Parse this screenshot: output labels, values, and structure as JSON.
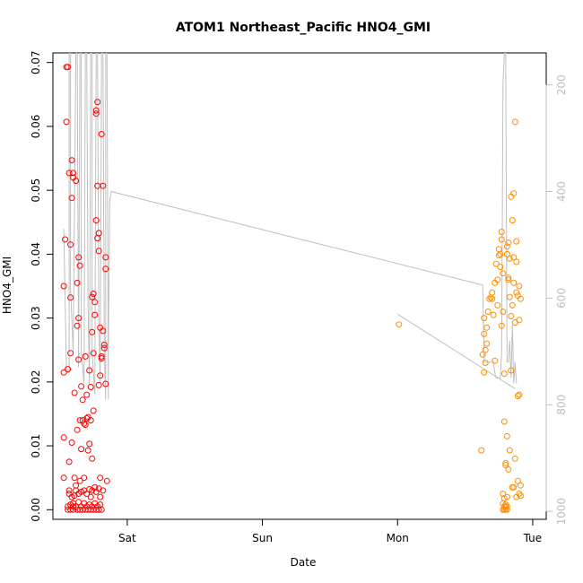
{
  "chart_data": {
    "type": "scatter",
    "title": "ATOM1 Northeast_Pacific HNO4_GMI",
    "xlabel": "Date",
    "ylabel": "HNO4_GMI",
    "x_unit": "days",
    "x_ticks": [
      {
        "label": "Sat",
        "value": 1.0
      },
      {
        "label": "Sun",
        "value": 2.0
      },
      {
        "label": "Mon",
        "value": 3.0
      },
      {
        "label": "Tue",
        "value": 4.0
      }
    ],
    "xlim": [
      0.45,
      4.1
    ],
    "ylim": [
      -0.0015,
      0.0715
    ],
    "y_ticks": [
      0.0,
      0.01,
      0.02,
      0.03,
      0.04,
      0.05,
      0.06,
      0.07
    ],
    "y_tick_labels": [
      "0.00",
      "0.01",
      "0.02",
      "0.03",
      "0.04",
      "0.05",
      "0.06",
      "0.07"
    ],
    "right_axis": {
      "lim": [
        1015,
        140
      ],
      "ticks": [
        200,
        400,
        600,
        800,
        1000
      ],
      "tick_labels": [
        "200",
        "400",
        "600",
        "800",
        "1000"
      ],
      "color": "#bdbdbd"
    },
    "grid": false,
    "legend": "none",
    "colors": {
      "series1": "#ff0000",
      "series2": "#ff8c00",
      "line": "#bfbfbf"
    },
    "series": [
      {
        "marker": "circle-open",
        "color": "#ff0000",
        "points": [
          [
            0.53,
            0.0215
          ],
          [
            0.53,
            0.035
          ],
          [
            0.53,
            0.005
          ],
          [
            0.53,
            0.0113
          ],
          [
            0.54,
            0.0423
          ],
          [
            0.55,
            0.0693
          ],
          [
            0.55,
            0.0607
          ],
          [
            0.56,
            0.022
          ],
          [
            0.56,
            0.0693
          ],
          [
            0.57,
            0.0527
          ],
          [
            0.57,
            0.003
          ],
          [
            0.57,
            0.0075
          ],
          [
            0.58,
            0.0415
          ],
          [
            0.58,
            0.0332
          ],
          [
            0.58,
            0.0245
          ],
          [
            0.59,
            0.0547
          ],
          [
            0.59,
            0.0488
          ],
          [
            0.59,
            0.0105
          ],
          [
            0.6,
            0.052
          ],
          [
            0.6,
            0.0527
          ],
          [
            0.6,
            0.0005
          ],
          [
            0.61,
            0.0183
          ],
          [
            0.61,
            0.005
          ],
          [
            0.62,
            0.0515
          ],
          [
            0.62,
            0.0038
          ],
          [
            0.63,
            0.0355
          ],
          [
            0.63,
            0.0288
          ],
          [
            0.63,
            0.0125
          ],
          [
            0.64,
            0.0395
          ],
          [
            0.64,
            0.03
          ],
          [
            0.64,
            0.0235
          ],
          [
            0.65,
            0.0382
          ],
          [
            0.65,
            0.014
          ],
          [
            0.65,
            0.0045
          ],
          [
            0.66,
            0.0193
          ],
          [
            0.66,
            0.0095
          ],
          [
            0.67,
            0.014
          ],
          [
            0.67,
            0.0172
          ],
          [
            0.68,
            0.0135
          ],
          [
            0.68,
            0.005
          ],
          [
            0.69,
            0.024
          ],
          [
            0.69,
            0.0133
          ],
          [
            0.7,
            0.0143
          ],
          [
            0.7,
            0.018
          ],
          [
            0.71,
            0.0145
          ],
          [
            0.71,
            0.0093
          ],
          [
            0.72,
            0.0218
          ],
          [
            0.72,
            0.0103
          ],
          [
            0.73,
            0.0192
          ],
          [
            0.73,
            0.014
          ],
          [
            0.74,
            0.0333
          ],
          [
            0.74,
            0.0278
          ],
          [
            0.74,
            0.008
          ],
          [
            0.75,
            0.0338
          ],
          [
            0.75,
            0.0245
          ],
          [
            0.75,
            0.0155
          ],
          [
            0.76,
            0.0325
          ],
          [
            0.76,
            0.0305
          ],
          [
            0.77,
            0.0453
          ],
          [
            0.77,
            0.0625
          ],
          [
            0.77,
            0.062
          ],
          [
            0.78,
            0.0638
          ],
          [
            0.78,
            0.0425
          ],
          [
            0.78,
            0.0507
          ],
          [
            0.79,
            0.0433
          ],
          [
            0.79,
            0.0405
          ],
          [
            0.79,
            0.0195
          ],
          [
            0.8,
            0.0285
          ],
          [
            0.8,
            0.021
          ],
          [
            0.8,
            0.005
          ],
          [
            0.81,
            0.024
          ],
          [
            0.81,
            0.0237
          ],
          [
            0.81,
            0.0588
          ],
          [
            0.82,
            0.0507
          ],
          [
            0.82,
            0.028
          ],
          [
            0.83,
            0.0253
          ],
          [
            0.83,
            0.0258
          ],
          [
            0.84,
            0.0377
          ],
          [
            0.84,
            0.0395
          ],
          [
            0.84,
            0.0197
          ],
          [
            0.85,
            0.0045
          ],
          [
            0.56,
            0.0005
          ],
          [
            0.56,
            0.0
          ],
          [
            0.58,
            0.0008
          ],
          [
            0.58,
            0.0
          ],
          [
            0.6,
            0.001
          ],
          [
            0.6,
            0.0
          ],
          [
            0.62,
            0.0005
          ],
          [
            0.63,
            0.0
          ],
          [
            0.64,
            0.0012
          ],
          [
            0.65,
            0.0
          ],
          [
            0.66,
            0.0005
          ],
          [
            0.67,
            0.0
          ],
          [
            0.68,
            0.001
          ],
          [
            0.69,
            0.0
          ],
          [
            0.7,
            0.0005
          ],
          [
            0.71,
            0.0
          ],
          [
            0.72,
            0.0008
          ],
          [
            0.73,
            0.0
          ],
          [
            0.74,
            0.0005
          ],
          [
            0.75,
            0.0
          ],
          [
            0.76,
            0.001
          ],
          [
            0.77,
            0.0
          ],
          [
            0.78,
            0.0005
          ],
          [
            0.79,
            0.0
          ],
          [
            0.8,
            0.0008
          ],
          [
            0.81,
            0.0
          ],
          [
            0.57,
            0.0025
          ],
          [
            0.59,
            0.002
          ],
          [
            0.61,
            0.0022
          ],
          [
            0.62,
            0.003
          ],
          [
            0.64,
            0.0025
          ],
          [
            0.66,
            0.0028
          ],
          [
            0.68,
            0.003
          ],
          [
            0.7,
            0.0025
          ],
          [
            0.72,
            0.0032
          ],
          [
            0.73,
            0.002
          ],
          [
            0.74,
            0.003
          ],
          [
            0.76,
            0.0035
          ],
          [
            0.77,
            0.0028
          ],
          [
            0.79,
            0.0033
          ],
          [
            0.8,
            0.002
          ],
          [
            0.82,
            0.003
          ]
        ]
      },
      {
        "marker": "circle-open",
        "color": "#ff8c00",
        "points": [
          [
            3.01,
            0.029
          ],
          [
            3.62,
            0.0093
          ],
          [
            3.63,
            0.0243
          ],
          [
            3.64,
            0.03
          ],
          [
            3.64,
            0.0275
          ],
          [
            3.64,
            0.0215
          ],
          [
            3.65,
            0.025
          ],
          [
            3.65,
            0.023
          ],
          [
            3.66,
            0.026
          ],
          [
            3.66,
            0.0285
          ],
          [
            3.67,
            0.031
          ],
          [
            3.68,
            0.033
          ],
          [
            3.69,
            0.0332
          ],
          [
            3.7,
            0.034
          ],
          [
            3.7,
            0.033
          ],
          [
            3.71,
            0.0305
          ],
          [
            3.72,
            0.0233
          ],
          [
            3.72,
            0.0355
          ],
          [
            3.73,
            0.0385
          ],
          [
            3.74,
            0.036
          ],
          [
            3.74,
            0.032
          ],
          [
            3.75,
            0.0398
          ],
          [
            3.75,
            0.0408
          ],
          [
            3.76,
            0.04
          ],
          [
            3.76,
            0.038
          ],
          [
            3.77,
            0.0435
          ],
          [
            3.77,
            0.0423
          ],
          [
            3.77,
            0.0288
          ],
          [
            3.78,
            0.031
          ],
          [
            3.78,
            0.037
          ],
          [
            3.79,
            0.0213
          ],
          [
            3.79,
            0.0138
          ],
          [
            3.8,
            0.0073
          ],
          [
            3.8,
            0.007
          ],
          [
            3.81,
            0.04
          ],
          [
            3.81,
            0.0412
          ],
          [
            3.81,
            0.0115
          ],
          [
            3.82,
            0.0418
          ],
          [
            3.82,
            0.0363
          ],
          [
            3.82,
            0.036
          ],
          [
            3.82,
            0.0063
          ],
          [
            3.83,
            0.0393
          ],
          [
            3.83,
            0.0333
          ],
          [
            3.83,
            0.0093
          ],
          [
            3.84,
            0.049
          ],
          [
            3.84,
            0.0303
          ],
          [
            3.84,
            0.0218
          ],
          [
            3.85,
            0.0453
          ],
          [
            3.85,
            0.032
          ],
          [
            3.85,
            0.0035
          ],
          [
            3.86,
            0.0495
          ],
          [
            3.86,
            0.0395
          ],
          [
            3.86,
            0.0355
          ],
          [
            3.87,
            0.0607
          ],
          [
            3.87,
            0.0293
          ],
          [
            3.87,
            0.008
          ],
          [
            3.88,
            0.042
          ],
          [
            3.88,
            0.0388
          ],
          [
            3.88,
            0.034
          ],
          [
            3.89,
            0.0335
          ],
          [
            3.89,
            0.0178
          ],
          [
            3.89,
            0.0045
          ],
          [
            3.9,
            0.018
          ],
          [
            3.9,
            0.035
          ],
          [
            3.9,
            0.0297
          ],
          [
            3.9,
            0.0025
          ],
          [
            3.91,
            0.033
          ],
          [
            3.91,
            0.0038
          ],
          [
            3.78,
            0.001
          ],
          [
            3.78,
            0.0
          ],
          [
            3.79,
            0.0005
          ],
          [
            3.79,
            0.0
          ],
          [
            3.8,
            0.0008
          ],
          [
            3.8,
            0.0
          ],
          [
            3.8,
            0.0005
          ],
          [
            3.81,
            0.0
          ],
          [
            3.81,
            0.0005
          ],
          [
            3.78,
            0.0025
          ],
          [
            3.79,
            0.0018
          ],
          [
            3.81,
            0.002
          ],
          [
            3.86,
            0.0035
          ],
          [
            3.88,
            0.002
          ],
          [
            3.91,
            0.0022
          ]
        ]
      }
    ],
    "line": {
      "color": "#bfbfbf",
      "axis": "right",
      "points": [
        [
          0.53,
          470
        ],
        [
          0.55,
          735
        ],
        [
          0.57,
          735
        ],
        [
          0.57,
          140
        ],
        [
          0.58,
          140
        ],
        [
          0.58,
          580
        ],
        [
          0.6,
          700
        ],
        [
          0.62,
          140
        ],
        [
          0.63,
          140
        ],
        [
          0.64,
          730
        ],
        [
          0.65,
          140
        ],
        [
          0.66,
          140
        ],
        [
          0.66,
          700
        ],
        [
          0.68,
          760
        ],
        [
          0.69,
          140
        ],
        [
          0.7,
          140
        ],
        [
          0.71,
          620
        ],
        [
          0.72,
          760
        ],
        [
          0.73,
          140
        ],
        [
          0.74,
          140
        ],
        [
          0.74,
          700
        ],
        [
          0.76,
          780
        ],
        [
          0.77,
          140
        ],
        [
          0.78,
          140
        ],
        [
          0.79,
          640
        ],
        [
          0.8,
          760
        ],
        [
          0.81,
          140
        ],
        [
          0.82,
          140
        ],
        [
          0.83,
          700
        ],
        [
          0.84,
          790
        ],
        [
          0.84,
          140
        ],
        [
          0.85,
          140
        ],
        [
          0.86,
          790
        ],
        [
          0.86,
          700
        ],
        [
          0.87,
          420
        ],
        [
          0.88,
          400
        ],
        [
          3.62,
          575
        ],
        [
          3.63,
          575
        ],
        [
          3.64,
          705
        ],
        [
          3.64,
          720
        ],
        [
          3.71,
          720
        ],
        [
          3.72,
          740
        ],
        [
          3.73,
          750
        ],
        [
          3.76,
          750
        ],
        [
          3.77,
          700
        ],
        [
          3.78,
          200
        ],
        [
          3.79,
          140
        ],
        [
          3.8,
          140
        ],
        [
          3.81,
          720
        ],
        [
          3.82,
          720
        ],
        [
          3.83,
          680
        ],
        [
          3.84,
          750
        ],
        [
          3.85,
          650
        ],
        [
          3.86,
          760
        ],
        [
          3.87,
          720
        ],
        [
          3.88,
          760
        ]
      ],
      "extra_segment": [
        [
          3.0,
          630
        ],
        [
          3.87,
          770
        ]
      ]
    }
  }
}
